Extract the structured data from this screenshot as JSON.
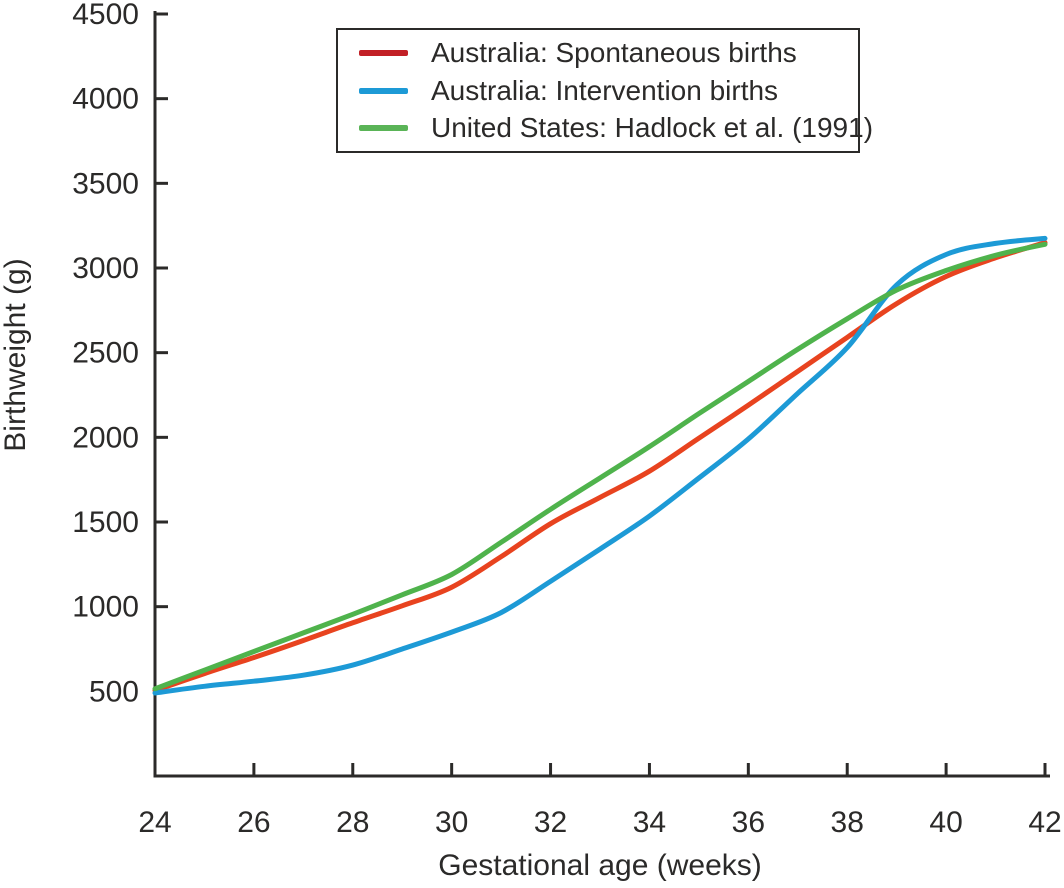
{
  "colors": {
    "background": "#ffffff",
    "axis": "#2b2a29",
    "text": "#2b2a29"
  },
  "chart_data": {
    "type": "line",
    "title": "",
    "xlabel": "Gestational age (weeks)",
    "ylabel": "Birthweight (g)",
    "xlim": [
      24,
      42
    ],
    "ylim": [
      0,
      4500
    ],
    "x_ticks": [
      24,
      26,
      28,
      30,
      32,
      34,
      36,
      38,
      40,
      42
    ],
    "y_ticks": [
      500,
      1000,
      1500,
      2000,
      2500,
      3000,
      3500,
      4000,
      4500
    ],
    "grid": false,
    "legend_position": "top-center-inside-box",
    "x": [
      24,
      25,
      26,
      27,
      28,
      29,
      30,
      31,
      32,
      33,
      34,
      35,
      36,
      37,
      38,
      39,
      40,
      41,
      42
    ],
    "series": [
      {
        "name": "Australia: Spontaneous births",
        "color": "#e8431f",
        "legend_color": "#c22026",
        "values": [
          505,
          605,
          700,
          800,
          905,
          1005,
          1115,
          1295,
          1490,
          1645,
          1800,
          1995,
          2190,
          2390,
          2590,
          2790,
          2950,
          3060,
          3150
        ]
      },
      {
        "name": "Australia: Intervention births",
        "color": "#1d9ad6",
        "legend_color": "#1d9ad6",
        "values": [
          490,
          530,
          560,
          595,
          655,
          750,
          850,
          965,
          1150,
          1340,
          1535,
          1760,
          1990,
          2260,
          2530,
          2900,
          3080,
          3145,
          3175
        ]
      },
      {
        "name": "United States: Hadlock et al. (1991)",
        "color": "#4fb34c",
        "legend_color": "#5ab457",
        "values": [
          515,
          625,
          735,
          845,
          955,
          1070,
          1190,
          1380,
          1575,
          1760,
          1945,
          2140,
          2330,
          2520,
          2700,
          2870,
          2985,
          3075,
          3140
        ]
      }
    ]
  }
}
